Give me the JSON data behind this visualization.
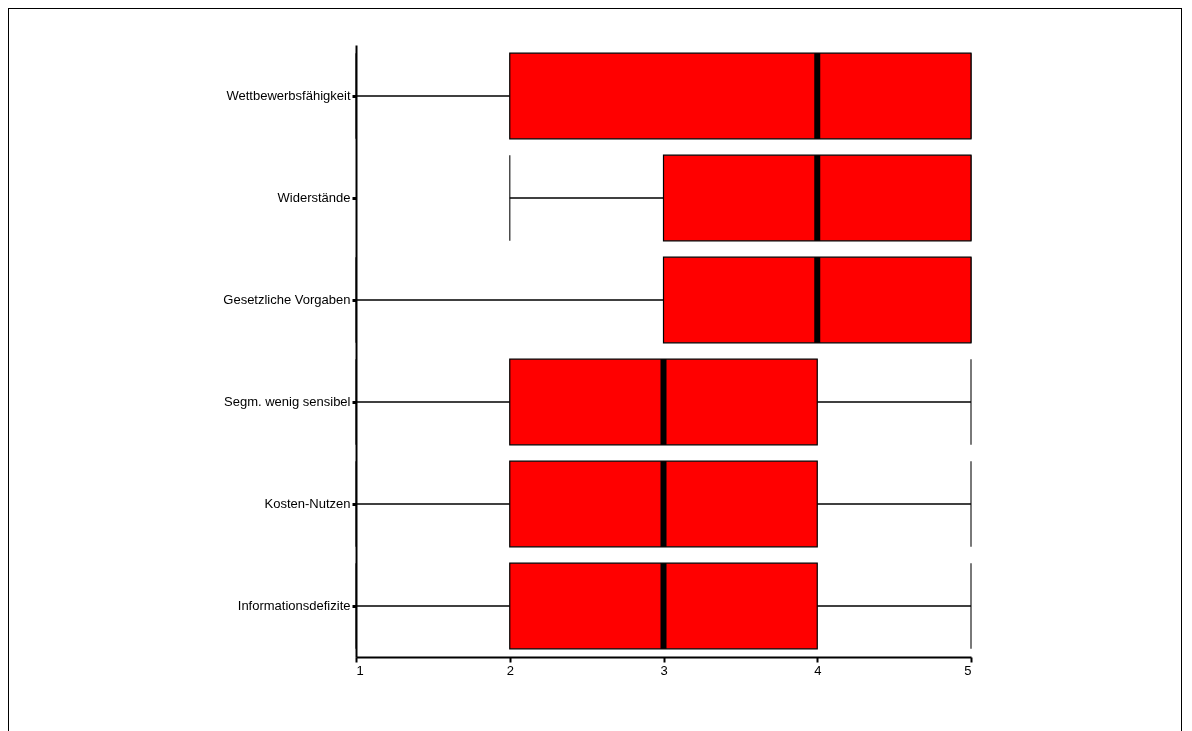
{
  "chart_data": {
    "type": "box",
    "orientation": "horizontal",
    "categories": [
      "Wettbewerbsfähigkeit",
      "Widerstände",
      "Gesetzliche Vorgaben",
      "Segm. wenig sensibel",
      "Kosten-Nutzen",
      "Informationsdefizite"
    ],
    "boxes": [
      {
        "low": 1,
        "q1": 2,
        "median": 4,
        "q3": 5,
        "high": 5
      },
      {
        "low": 2,
        "q1": 3,
        "median": 4,
        "q3": 5,
        "high": 5
      },
      {
        "low": 1,
        "q1": 3,
        "median": 4,
        "q3": 5,
        "high": 5
      },
      {
        "low": 1,
        "q1": 2,
        "median": 3,
        "q3": 4,
        "high": 5
      },
      {
        "low": 1,
        "q1": 2,
        "median": 3,
        "q3": 4,
        "high": 5
      },
      {
        "low": 1,
        "q1": 2,
        "median": 3,
        "q3": 4,
        "high": 5
      }
    ],
    "color": "#ff0000",
    "xlim": [
      1,
      5
    ],
    "xticks": [
      1,
      2,
      3,
      4,
      5
    ],
    "grid": false
  }
}
